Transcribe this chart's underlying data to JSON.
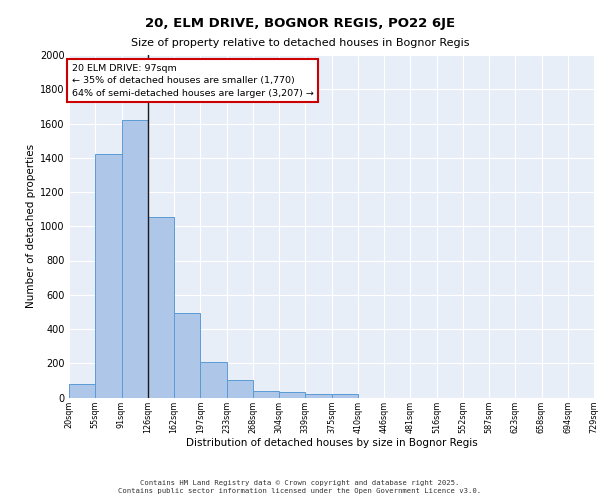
{
  "title1": "20, ELM DRIVE, BOGNOR REGIS, PO22 6JE",
  "title2": "Size of property relative to detached houses in Bognor Regis",
  "xlabel": "Distribution of detached houses by size in Bognor Regis",
  "ylabel": "Number of detached properties",
  "bar_values": [
    80,
    1420,
    1620,
    1055,
    495,
    205,
    105,
    40,
    30,
    20,
    20,
    0,
    0,
    0,
    0,
    0,
    0,
    0,
    0,
    0
  ],
  "categories": [
    "20sqm",
    "55sqm",
    "91sqm",
    "126sqm",
    "162sqm",
    "197sqm",
    "233sqm",
    "268sqm",
    "304sqm",
    "339sqm",
    "375sqm",
    "410sqm",
    "446sqm",
    "481sqm",
    "516sqm",
    "552sqm",
    "587sqm",
    "623sqm",
    "658sqm",
    "694sqm",
    "729sqm"
  ],
  "bar_color": "#aec6e8",
  "bar_edge_color": "#5b9bd5",
  "bg_color": "#e8eef8",
  "grid_color": "#ffffff",
  "vline_x": 2.5,
  "vline_color": "#1a1a1a",
  "annotation_text": "20 ELM DRIVE: 97sqm\n← 35% of detached houses are smaller (1,770)\n64% of semi-detached houses are larger (3,207) →",
  "annotation_box_color": "#ffffff",
  "annotation_box_edge": "#cc0000",
  "ylim": [
    0,
    2000
  ],
  "yticks": [
    0,
    200,
    400,
    600,
    800,
    1000,
    1200,
    1400,
    1600,
    1800,
    2000
  ],
  "footer1": "Contains HM Land Registry data © Crown copyright and database right 2025.",
  "footer2": "Contains public sector information licensed under the Open Government Licence v3.0."
}
